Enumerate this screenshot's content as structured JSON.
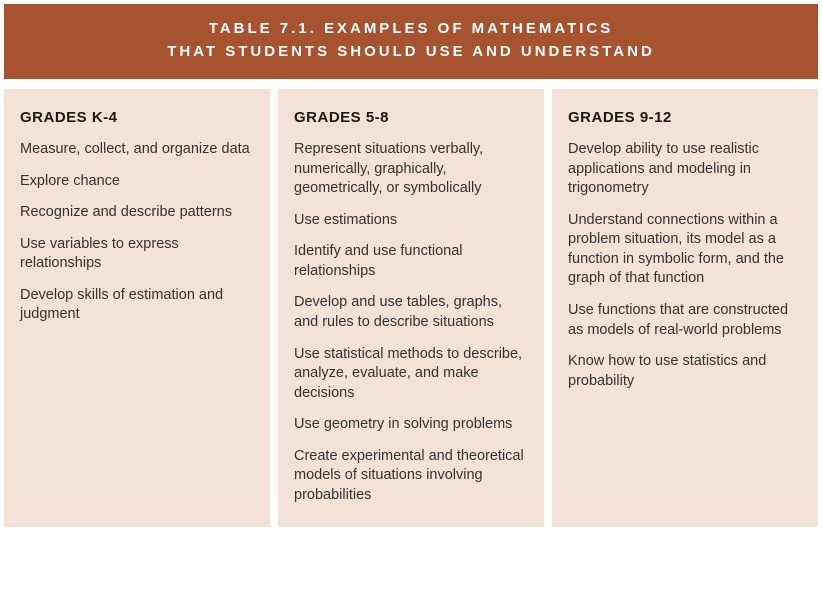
{
  "header": {
    "line1": "TABLE 7.1.   EXAMPLES OF MATHEMATICS",
    "line2": "THAT STUDENTS SHOULD USE AND UNDERSTAND"
  },
  "colors": {
    "band": "#a85330",
    "panel": "#f4e2d6",
    "band_text": "#ffffff",
    "body_text": "#333333"
  },
  "columns": [
    {
      "heading": "GRADES K-4",
      "items": [
        "Measure, collect, and organize data",
        "Explore chance",
        "Recognize and describe patterns",
        "Use variables to express relationships",
        "Develop skills of estimation and judgment"
      ]
    },
    {
      "heading": "GRADES 5-8",
      "items": [
        "Represent situations verbally, numerically, graphically, geometrically, or symbolically",
        "Use estimations",
        "Identify and use functional relationships",
        "Develop and use tables, graphs, and rules to describe situations",
        "Use statistical methods to describe, analyze, evaluate, and make decisions",
        "Use geometry in solving problems",
        "Create experimental and theoretical models of situations involving probabilities"
      ]
    },
    {
      "heading": "GRADES 9-12",
      "items": [
        "Develop ability to use realistic applications and modeling in trigonometry",
        "Understand connections within a problem situation, its model as a function in symbolic form, and the graph of that function",
        "Use functions that are constructed as models of real-world problems",
        "Know how to use statistics and probability"
      ]
    }
  ]
}
